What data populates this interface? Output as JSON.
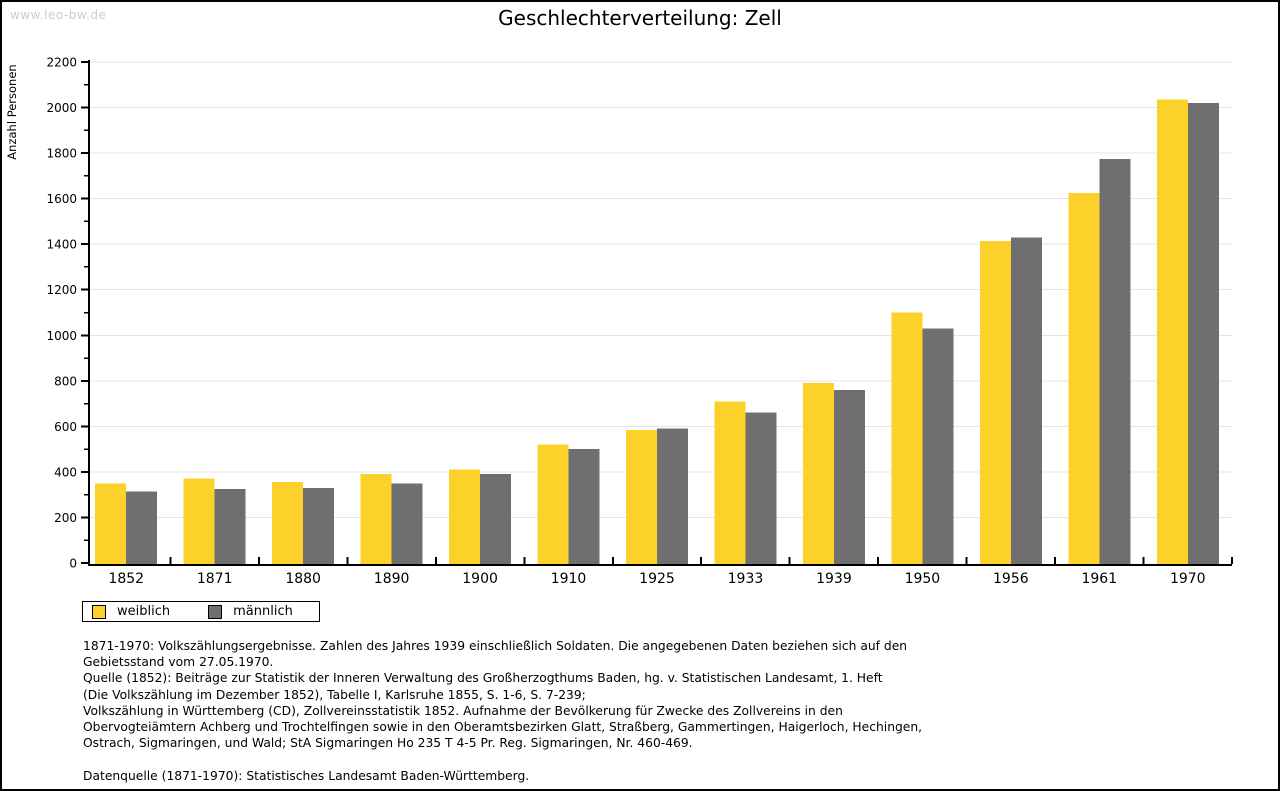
{
  "watermark": "www.leo-bw.de",
  "title": "Geschlechterverteilung: Zell",
  "chart_data": {
    "type": "bar",
    "title": "Geschlechterverteilung: Zell",
    "xlabel": "",
    "ylabel": "Anzahl Personen",
    "ylim": [
      0,
      2200
    ],
    "ytick_step": 200,
    "yminor_step": 100,
    "grid": true,
    "legend_position": "bottom-left",
    "categories": [
      "1852",
      "1871",
      "1880",
      "1890",
      "1900",
      "1910",
      "1925",
      "1933",
      "1939",
      "1950",
      "1956",
      "1961",
      "1970"
    ],
    "series": [
      {
        "name": "weiblich",
        "color": "#FCD12A",
        "values": [
          350,
          370,
          355,
          390,
          410,
          520,
          585,
          710,
          790,
          1100,
          1415,
          1625,
          2035
        ]
      },
      {
        "name": "männlich",
        "color": "#6F6F6F",
        "values": [
          315,
          325,
          330,
          350,
          390,
          500,
          590,
          660,
          760,
          1030,
          1430,
          1775,
          2020
        ]
      }
    ],
    "colors": {
      "grid": "#e4e4e4",
      "axis": "#000000",
      "text": "#000000"
    }
  },
  "footer": {
    "lines": [
      "1871-1970: Volkszählungsergebnisse. Zahlen des Jahres 1939 einschließlich Soldaten. Die angegebenen Daten beziehen sich auf den",
      "Gebietsstand vom 27.05.1970.",
      "Quelle (1852): Beiträge zur Statistik der Inneren Verwaltung des Großherzogthums Baden, hg. v. Statistischen Landesamt, 1. Heft",
      "(Die Volkszählung im Dezember 1852), Tabelle I, Karlsruhe 1855, S. 1-6, S. 7-239;",
      "Volkszählung in Württemberg (CD), Zollvereinsstatistik 1852. Aufnahme der Bevölkerung für Zwecke des Zollvereins in den",
      "Obervogteiämtern Achberg und Trochtelfingen sowie in den Oberamtsbezirken Glatt, Straßberg, Gammertingen, Haigerloch, Hechingen,",
      "Ostrach, Sigmaringen, und Wald; StA Sigmaringen Ho 235 T 4-5 Pr. Reg. Sigmaringen, Nr. 460-469.",
      "",
      "Datenquelle (1871-1970): Statistisches Landesamt Baden-Württemberg."
    ]
  }
}
